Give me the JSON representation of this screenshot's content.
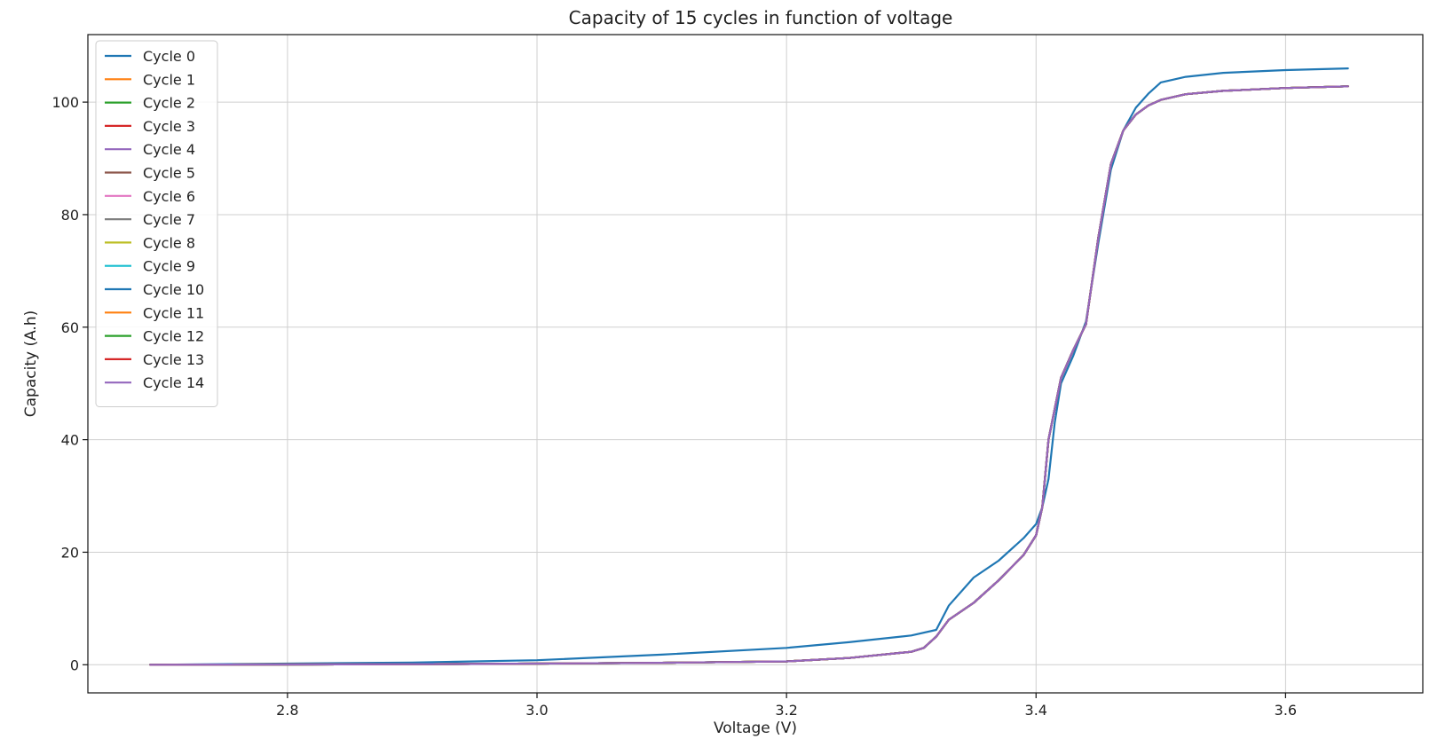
{
  "chart_data": {
    "type": "line",
    "title": "Capacity of 15 cycles in function of voltage",
    "xlabel": "Voltage (V)",
    "ylabel": "Capacity (A.h)",
    "xlim": [
      2.64,
      3.71
    ],
    "ylim": [
      -5,
      112
    ],
    "xticks": [
      2.8,
      3.0,
      3.2,
      3.4,
      3.6
    ],
    "xtick_labels": [
      "2.8",
      "3.0",
      "3.2",
      "3.4",
      "3.6"
    ],
    "yticks": [
      0,
      20,
      40,
      60,
      80,
      100
    ],
    "ytick_labels": [
      "0",
      "20",
      "40",
      "60",
      "80",
      "100"
    ],
    "grid": true,
    "legend_position": "top-left",
    "series": [
      {
        "name": "Cycle 0",
        "color": "#1f77b4",
        "x": [
          2.69,
          2.8,
          2.9,
          3.0,
          3.1,
          3.2,
          3.25,
          3.3,
          3.32,
          3.33,
          3.35,
          3.37,
          3.39,
          3.4,
          3.405,
          3.41,
          3.415,
          3.42,
          3.43,
          3.44,
          3.45,
          3.46,
          3.47,
          3.48,
          3.49,
          3.5,
          3.52,
          3.55,
          3.6,
          3.65
        ],
        "y": [
          0,
          0.2,
          0.4,
          0.8,
          1.8,
          3.0,
          4.0,
          5.2,
          6.2,
          10.5,
          15.5,
          18.5,
          22.5,
          25.0,
          28.0,
          33.0,
          43.0,
          50.0,
          55.0,
          61.0,
          75.0,
          88.0,
          95.0,
          99.0,
          101.5,
          103.5,
          104.5,
          105.2,
          105.7,
          106.0
        ]
      },
      {
        "name": "Cycle 1",
        "color": "#ff7f0e",
        "x": [
          2.69,
          2.8,
          2.9,
          3.0,
          3.1,
          3.2,
          3.25,
          3.3,
          3.31,
          3.32,
          3.33,
          3.35,
          3.37,
          3.39,
          3.4,
          3.405,
          3.41,
          3.42,
          3.43,
          3.44,
          3.45,
          3.46,
          3.47,
          3.48,
          3.49,
          3.5,
          3.52,
          3.55,
          3.6,
          3.65
        ],
        "y": [
          0,
          0.05,
          0.1,
          0.2,
          0.35,
          0.6,
          1.2,
          2.3,
          3.0,
          5.0,
          8.0,
          11.0,
          15.0,
          19.5,
          23.0,
          28.0,
          40.0,
          51.0,
          56.0,
          60.5,
          76.0,
          89.0,
          95.0,
          97.8,
          99.4,
          100.4,
          101.4,
          102.0,
          102.5,
          102.8
        ]
      },
      {
        "name": "Cycle 2",
        "color": "#2ca02c",
        "x": [
          2.69,
          2.8,
          2.9,
          3.0,
          3.1,
          3.2,
          3.25,
          3.3,
          3.31,
          3.32,
          3.33,
          3.35,
          3.37,
          3.39,
          3.4,
          3.405,
          3.41,
          3.42,
          3.43,
          3.44,
          3.45,
          3.46,
          3.47,
          3.48,
          3.49,
          3.5,
          3.52,
          3.55,
          3.6,
          3.65
        ],
        "y": [
          0,
          0.05,
          0.1,
          0.2,
          0.35,
          0.6,
          1.2,
          2.3,
          3.0,
          5.0,
          8.0,
          11.0,
          15.0,
          19.5,
          23.0,
          28.0,
          40.0,
          51.0,
          56.0,
          60.5,
          76.0,
          89.0,
          95.0,
          97.8,
          99.4,
          100.4,
          101.4,
          102.0,
          102.5,
          102.8
        ]
      },
      {
        "name": "Cycle 3",
        "color": "#d62728",
        "x": [
          2.69,
          2.8,
          2.9,
          3.0,
          3.1,
          3.2,
          3.25,
          3.3,
          3.31,
          3.32,
          3.33,
          3.35,
          3.37,
          3.39,
          3.4,
          3.405,
          3.41,
          3.42,
          3.43,
          3.44,
          3.45,
          3.46,
          3.47,
          3.48,
          3.49,
          3.5,
          3.52,
          3.55,
          3.6,
          3.65
        ],
        "y": [
          0,
          0.05,
          0.1,
          0.2,
          0.35,
          0.6,
          1.2,
          2.3,
          3.0,
          5.0,
          8.0,
          11.0,
          15.0,
          19.5,
          23.0,
          28.0,
          40.0,
          51.0,
          56.0,
          60.5,
          76.0,
          89.0,
          95.0,
          97.8,
          99.4,
          100.4,
          101.4,
          102.0,
          102.5,
          102.8
        ]
      },
      {
        "name": "Cycle 4",
        "color": "#9467bd",
        "x": [
          2.69,
          2.8,
          2.9,
          3.0,
          3.1,
          3.2,
          3.25,
          3.3,
          3.31,
          3.32,
          3.33,
          3.35,
          3.37,
          3.39,
          3.4,
          3.405,
          3.41,
          3.42,
          3.43,
          3.44,
          3.45,
          3.46,
          3.47,
          3.48,
          3.49,
          3.5,
          3.52,
          3.55,
          3.6,
          3.65
        ],
        "y": [
          0,
          0.05,
          0.1,
          0.2,
          0.35,
          0.6,
          1.2,
          2.3,
          3.0,
          5.0,
          8.0,
          11.0,
          15.0,
          19.5,
          23.0,
          28.0,
          40.0,
          51.0,
          56.0,
          60.5,
          76.0,
          89.0,
          95.0,
          97.8,
          99.4,
          100.4,
          101.4,
          102.0,
          102.5,
          102.8
        ]
      },
      {
        "name": "Cycle 5",
        "color": "#8c564b",
        "x": [
          2.69,
          2.8,
          2.9,
          3.0,
          3.1,
          3.2,
          3.25,
          3.3,
          3.31,
          3.32,
          3.33,
          3.35,
          3.37,
          3.39,
          3.4,
          3.405,
          3.41,
          3.42,
          3.43,
          3.44,
          3.45,
          3.46,
          3.47,
          3.48,
          3.49,
          3.5,
          3.52,
          3.55,
          3.6,
          3.65
        ],
        "y": [
          0,
          0.05,
          0.1,
          0.2,
          0.35,
          0.6,
          1.2,
          2.3,
          3.0,
          5.0,
          8.0,
          11.0,
          15.0,
          19.5,
          23.0,
          28.0,
          40.0,
          51.0,
          56.0,
          60.5,
          76.0,
          89.0,
          95.0,
          97.8,
          99.4,
          100.4,
          101.4,
          102.0,
          102.5,
          102.8
        ]
      },
      {
        "name": "Cycle 6",
        "color": "#e377c2",
        "x": [
          2.69,
          2.8,
          2.9,
          3.0,
          3.1,
          3.2,
          3.25,
          3.3,
          3.31,
          3.32,
          3.33,
          3.35,
          3.37,
          3.39,
          3.4,
          3.405,
          3.41,
          3.42,
          3.43,
          3.44,
          3.45,
          3.46,
          3.47,
          3.48,
          3.49,
          3.5,
          3.52,
          3.55,
          3.6,
          3.65
        ],
        "y": [
          0,
          0.05,
          0.1,
          0.2,
          0.35,
          0.6,
          1.2,
          2.3,
          3.0,
          5.0,
          8.0,
          11.0,
          15.0,
          19.5,
          23.0,
          28.0,
          40.0,
          51.0,
          56.0,
          60.5,
          76.0,
          89.0,
          95.0,
          97.8,
          99.4,
          100.4,
          101.4,
          102.0,
          102.5,
          102.8
        ]
      },
      {
        "name": "Cycle 7",
        "color": "#7f7f7f",
        "x": [
          2.69,
          2.8,
          2.9,
          3.0,
          3.1,
          3.2,
          3.25,
          3.3,
          3.31,
          3.32,
          3.33,
          3.35,
          3.37,
          3.39,
          3.4,
          3.405,
          3.41,
          3.42,
          3.43,
          3.44,
          3.45,
          3.46,
          3.47,
          3.48,
          3.49,
          3.5,
          3.52,
          3.55,
          3.6,
          3.65
        ],
        "y": [
          0,
          0.05,
          0.1,
          0.2,
          0.35,
          0.6,
          1.2,
          2.3,
          3.0,
          5.0,
          8.0,
          11.0,
          15.0,
          19.5,
          23.0,
          28.0,
          40.0,
          51.0,
          56.0,
          60.5,
          76.0,
          89.0,
          95.0,
          97.8,
          99.4,
          100.4,
          101.4,
          102.0,
          102.5,
          102.8
        ]
      },
      {
        "name": "Cycle 8",
        "color": "#bcbd22",
        "x": [
          2.69,
          2.8,
          2.9,
          3.0,
          3.1,
          3.2,
          3.25,
          3.3,
          3.31,
          3.32,
          3.33,
          3.35,
          3.37,
          3.39,
          3.4,
          3.405,
          3.41,
          3.42,
          3.43,
          3.44,
          3.45,
          3.46,
          3.47,
          3.48,
          3.49,
          3.5,
          3.52,
          3.55,
          3.6,
          3.65
        ],
        "y": [
          0,
          0.05,
          0.1,
          0.2,
          0.35,
          0.6,
          1.2,
          2.3,
          3.0,
          5.0,
          8.0,
          11.0,
          15.0,
          19.5,
          23.0,
          28.0,
          40.0,
          51.0,
          56.0,
          60.5,
          76.0,
          89.0,
          95.0,
          97.8,
          99.4,
          100.4,
          101.4,
          102.0,
          102.5,
          102.8
        ]
      },
      {
        "name": "Cycle 9",
        "color": "#17becf",
        "x": [
          2.69,
          2.8,
          2.9,
          3.0,
          3.1,
          3.2,
          3.25,
          3.3,
          3.31,
          3.32,
          3.33,
          3.35,
          3.37,
          3.39,
          3.4,
          3.405,
          3.41,
          3.42,
          3.43,
          3.44,
          3.45,
          3.46,
          3.47,
          3.48,
          3.49,
          3.5,
          3.52,
          3.55,
          3.6,
          3.65
        ],
        "y": [
          0,
          0.05,
          0.1,
          0.2,
          0.35,
          0.6,
          1.2,
          2.3,
          3.0,
          5.0,
          8.0,
          11.0,
          15.0,
          19.5,
          23.0,
          28.0,
          40.0,
          51.0,
          56.0,
          60.5,
          76.0,
          89.0,
          95.0,
          97.8,
          99.4,
          100.4,
          101.4,
          102.0,
          102.5,
          102.8
        ]
      },
      {
        "name": "Cycle 10",
        "color": "#1f77b4",
        "x": [
          2.69,
          2.8,
          2.9,
          3.0,
          3.1,
          3.2,
          3.25,
          3.3,
          3.31,
          3.32,
          3.33,
          3.35,
          3.37,
          3.39,
          3.4,
          3.405,
          3.41,
          3.42,
          3.43,
          3.44,
          3.45,
          3.46,
          3.47,
          3.48,
          3.49,
          3.5,
          3.52,
          3.55,
          3.6,
          3.65
        ],
        "y": [
          0,
          0.05,
          0.1,
          0.2,
          0.35,
          0.6,
          1.2,
          2.3,
          3.0,
          5.0,
          8.0,
          11.0,
          15.0,
          19.5,
          23.0,
          28.0,
          40.0,
          51.0,
          56.0,
          60.5,
          76.0,
          89.0,
          95.0,
          97.8,
          99.4,
          100.4,
          101.4,
          102.0,
          102.5,
          102.8
        ]
      },
      {
        "name": "Cycle 11",
        "color": "#ff7f0e",
        "x": [
          2.69,
          2.8,
          2.9,
          3.0,
          3.1,
          3.2,
          3.25,
          3.3,
          3.31,
          3.32,
          3.33,
          3.35,
          3.37,
          3.39,
          3.4,
          3.405,
          3.41,
          3.42,
          3.43,
          3.44,
          3.45,
          3.46,
          3.47,
          3.48,
          3.49,
          3.5,
          3.52,
          3.55,
          3.6,
          3.65
        ],
        "y": [
          0,
          0.05,
          0.1,
          0.2,
          0.35,
          0.6,
          1.2,
          2.3,
          3.0,
          5.0,
          8.0,
          11.0,
          15.0,
          19.5,
          23.0,
          28.0,
          40.0,
          51.0,
          56.0,
          60.5,
          76.0,
          89.0,
          95.0,
          97.8,
          99.4,
          100.4,
          101.4,
          102.0,
          102.5,
          102.8
        ]
      },
      {
        "name": "Cycle 12",
        "color": "#2ca02c",
        "x": [
          2.69,
          2.8,
          2.9,
          3.0,
          3.1,
          3.2,
          3.25,
          3.3,
          3.31,
          3.32,
          3.33,
          3.35,
          3.37,
          3.39,
          3.4,
          3.405,
          3.41,
          3.42,
          3.43,
          3.44,
          3.45,
          3.46,
          3.47,
          3.48,
          3.49,
          3.5,
          3.52,
          3.55,
          3.6,
          3.65
        ],
        "y": [
          0,
          0.05,
          0.1,
          0.2,
          0.35,
          0.6,
          1.2,
          2.3,
          3.0,
          5.0,
          8.0,
          11.0,
          15.0,
          19.5,
          23.0,
          28.0,
          40.0,
          51.0,
          56.0,
          60.5,
          76.0,
          89.0,
          95.0,
          97.8,
          99.4,
          100.4,
          101.4,
          102.0,
          102.5,
          102.8
        ]
      },
      {
        "name": "Cycle 13",
        "color": "#d62728",
        "x": [
          2.69,
          2.8,
          2.9,
          3.0,
          3.1,
          3.2,
          3.25,
          3.3,
          3.31,
          3.32,
          3.33,
          3.35,
          3.37,
          3.39,
          3.4,
          3.405,
          3.41,
          3.42,
          3.43,
          3.44,
          3.45,
          3.46,
          3.47,
          3.48,
          3.49,
          3.5,
          3.52,
          3.55,
          3.6,
          3.65
        ],
        "y": [
          0,
          0.05,
          0.1,
          0.2,
          0.35,
          0.6,
          1.2,
          2.3,
          3.0,
          5.0,
          8.0,
          11.0,
          15.0,
          19.5,
          23.0,
          28.0,
          40.0,
          51.0,
          56.0,
          60.5,
          76.0,
          89.0,
          95.0,
          97.8,
          99.4,
          100.4,
          101.4,
          102.0,
          102.5,
          102.8
        ]
      },
      {
        "name": "Cycle 14",
        "color": "#9467bd",
        "x": [
          2.69,
          2.8,
          2.9,
          3.0,
          3.1,
          3.2,
          3.25,
          3.3,
          3.31,
          3.32,
          3.33,
          3.35,
          3.37,
          3.39,
          3.4,
          3.405,
          3.41,
          3.42,
          3.43,
          3.44,
          3.45,
          3.46,
          3.47,
          3.48,
          3.49,
          3.5,
          3.52,
          3.55,
          3.6,
          3.65
        ],
        "y": [
          0,
          0.05,
          0.1,
          0.2,
          0.35,
          0.6,
          1.2,
          2.3,
          3.0,
          5.0,
          8.0,
          11.0,
          15.0,
          19.5,
          23.0,
          28.0,
          40.0,
          51.0,
          56.0,
          60.5,
          76.0,
          89.0,
          95.0,
          97.8,
          99.4,
          100.4,
          101.4,
          102.0,
          102.5,
          102.8
        ]
      }
    ]
  }
}
